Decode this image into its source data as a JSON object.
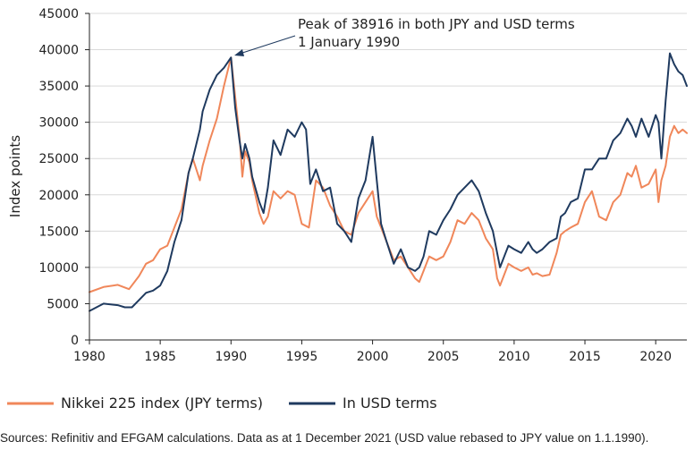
{
  "chart_data": {
    "type": "line",
    "title": "",
    "xlabel": "",
    "ylabel": "Index points",
    "xlim": [
      1980,
      2022.2
    ],
    "ylim": [
      0,
      45000
    ],
    "x_ticks": [
      1980,
      1985,
      1990,
      1995,
      2000,
      2005,
      2010,
      2015,
      2020
    ],
    "y_ticks": [
      0,
      5000,
      10000,
      15000,
      20000,
      25000,
      30000,
      35000,
      40000,
      45000
    ],
    "grid": "horizontal",
    "legend_position": "bottom-left",
    "series": [
      {
        "name": "Nikkei 225 index (JPY terms)",
        "color": "#f0875a",
        "x": [
          1980,
          1981,
          1982,
          1982.8,
          1983.5,
          1984,
          1984.5,
          1985,
          1985.5,
          1986,
          1986.5,
          1987,
          1987.3,
          1987.8,
          1988,
          1988.5,
          1989,
          1989.5,
          1990,
          1990.3,
          1990.6,
          1990.8,
          1991,
          1991.3,
          1991.5,
          1992,
          1992.3,
          1992.6,
          1993,
          1993.5,
          1994,
          1994.5,
          1995,
          1995.5,
          1996,
          1996.5,
          1997,
          1997.5,
          1998,
          1998.5,
          1999,
          1999.5,
          2000,
          2000.3,
          2000.6,
          2001,
          2001.5,
          2002,
          2002.5,
          2003,
          2003.3,
          2003.6,
          2004,
          2004.5,
          2005,
          2005.5,
          2006,
          2006.5,
          2007,
          2007.5,
          2008,
          2008.5,
          2008.8,
          2009,
          2009.3,
          2009.6,
          2010,
          2010.5,
          2011,
          2011.3,
          2011.6,
          2012,
          2012.5,
          2013,
          2013.3,
          2013.6,
          2014,
          2014.5,
          2015,
          2015.5,
          2016,
          2016.5,
          2017,
          2017.5,
          2018,
          2018.3,
          2018.6,
          2019,
          2019.5,
          2020,
          2020.2,
          2020.4,
          2020.7,
          2021,
          2021.3,
          2021.6,
          2021.9,
          2022.2
        ],
        "values": [
          6600,
          7300,
          7600,
          7000,
          8800,
          10500,
          11000,
          12500,
          13000,
          15500,
          18000,
          23000,
          25000,
          22000,
          24000,
          27500,
          30500,
          35000,
          38916,
          33500,
          28000,
          22500,
          26000,
          24500,
          22000,
          17500,
          16000,
          17000,
          20500,
          19500,
          20500,
          20000,
          16000,
          15500,
          22000,
          21000,
          18500,
          17000,
          15000,
          14500,
          17500,
          19000,
          20500,
          17000,
          15500,
          13500,
          11000,
          11500,
          10000,
          8500,
          8000,
          9500,
          11500,
          11000,
          11500,
          13500,
          16500,
          16000,
          17500,
          16500,
          14000,
          12500,
          8500,
          7500,
          9000,
          10500,
          10000,
          9500,
          10000,
          9000,
          9200,
          8800,
          9000,
          12000,
          14500,
          15000,
          15500,
          16000,
          19000,
          20500,
          17000,
          16500,
          19000,
          20000,
          23000,
          22500,
          24000,
          21000,
          21500,
          23500,
          19000,
          22000,
          24000,
          28000,
          29500,
          28500,
          29000,
          28500
        ]
      },
      {
        "name": "In USD terms",
        "color": "#1f3a5f",
        "x": [
          1980,
          1980.5,
          1981,
          1982,
          1982.5,
          1983,
          1983.5,
          1984,
          1984.5,
          1985,
          1985.5,
          1986,
          1986.5,
          1987,
          1987.3,
          1987.8,
          1988,
          1988.5,
          1989,
          1989.5,
          1990,
          1990.3,
          1990.6,
          1990.8,
          1991,
          1991.3,
          1991.5,
          1992,
          1992.3,
          1992.6,
          1993,
          1993.5,
          1994,
          1994.5,
          1995,
          1995.3,
          1995.6,
          1996,
          1996.5,
          1997,
          1997.5,
          1998,
          1998.5,
          1999,
          1999.5,
          2000,
          2000.3,
          2000.6,
          2001,
          2001.5,
          2002,
          2002.5,
          2003,
          2003.3,
          2003.6,
          2004,
          2004.5,
          2005,
          2005.5,
          2006,
          2006.5,
          2007,
          2007.5,
          2008,
          2008.5,
          2008.8,
          2009,
          2009.3,
          2009.6,
          2010,
          2010.5,
          2011,
          2011.3,
          2011.6,
          2012,
          2012.5,
          2013,
          2013.3,
          2013.6,
          2014,
          2014.5,
          2015,
          2015.5,
          2016,
          2016.5,
          2017,
          2017.5,
          2018,
          2018.3,
          2018.6,
          2019,
          2019.5,
          2020,
          2020.2,
          2020.4,
          2020.7,
          2021,
          2021.3,
          2021.6,
          2021.9,
          2022.2
        ],
        "values": [
          4000,
          4500,
          5000,
          4800,
          4500,
          4500,
          5500,
          6500,
          6800,
          7500,
          9500,
          13500,
          16500,
          23000,
          25000,
          29000,
          31500,
          34500,
          36500,
          37500,
          38916,
          32000,
          27500,
          25000,
          27000,
          25000,
          22500,
          19000,
          17500,
          21000,
          27500,
          25500,
          29000,
          28000,
          30000,
          29000,
          21500,
          23500,
          20500,
          21000,
          16000,
          15000,
          13500,
          19500,
          22000,
          28000,
          22000,
          16000,
          13500,
          10500,
          12500,
          10000,
          9500,
          10000,
          11500,
          15000,
          14500,
          16500,
          18000,
          20000,
          21000,
          22000,
          20500,
          17500,
          15000,
          12000,
          10000,
          11500,
          13000,
          12500,
          12000,
          13500,
          12500,
          12000,
          12500,
          13500,
          14000,
          17000,
          17500,
          19000,
          19500,
          23500,
          23500,
          25000,
          25000,
          27500,
          28500,
          30500,
          29500,
          28000,
          30500,
          28000,
          31000,
          30000,
          25000,
          33000,
          39500,
          38000,
          37000,
          36500,
          35000
        ]
      }
    ],
    "annotations": [
      {
        "text_line1": "Peak of 38916 in both JPY and USD terms",
        "text_line2": "1 January 1990",
        "x": 1990,
        "y": 38916
      }
    ]
  },
  "source_note": "Sources: Refinitiv and EFGAM calculations. Data as at 1 December 2021 (USD value rebased to JPY value on 1.1.1990)."
}
